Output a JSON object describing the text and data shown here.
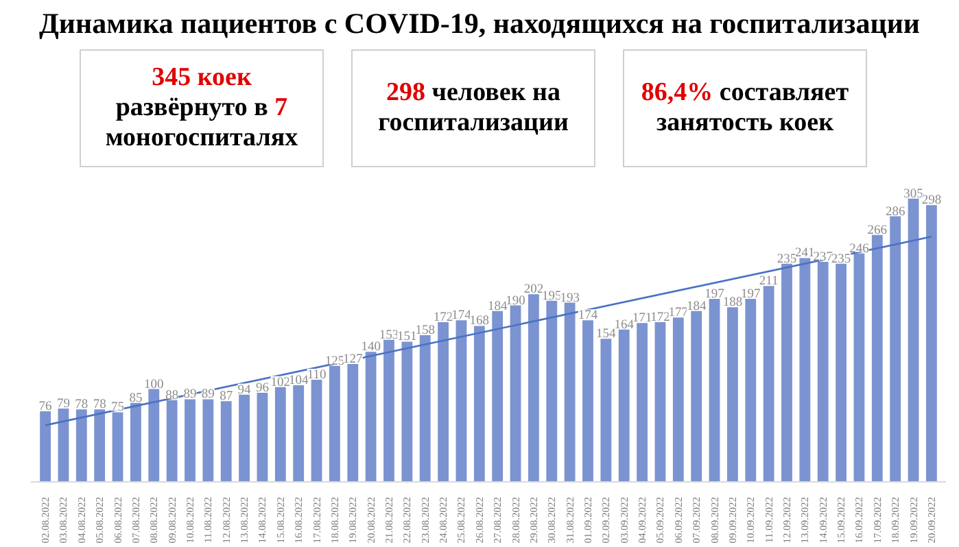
{
  "chart_data": [
    {
      "type": "bar",
      "title": "Динамика пациентов с COVID-19, находящихся на госпитализации",
      "categories": [
        "02.08.2022",
        "03.08.2022",
        "04.08.2022",
        "05.08.2022",
        "06.08.2022",
        "07.08.2022",
        "08.08.2022",
        "09.08.2022",
        "10.08.2022",
        "11.08.2022",
        "12.08.2022",
        "13.08.2022",
        "14.08.2022",
        "15.08.2022",
        "16.08.2022",
        "17.08.2022",
        "18.08.2022",
        "19.08.2022",
        "20.08.2022",
        "21.08.2022",
        "22.08.2022",
        "23.08.2022",
        "24.08.2022",
        "25.08.2022",
        "26.08.2022",
        "27.08.2022",
        "28.08.2022",
        "29.08.2022",
        "30.08.2022",
        "31.08.2022",
        "01.09.2022",
        "02.09.2022",
        "03.09.2022",
        "04.09.2022",
        "05.09.2022",
        "06.09.2022",
        "07.09.2022",
        "08.09.2022",
        "09.09.2022",
        "10.09.2022",
        "11.09.2022",
        "12.09.2022",
        "13.09.2022",
        "14.09.2022",
        "15.09.2022",
        "16.09.2022",
        "17.09.2022",
        "18.09.2022",
        "19.09.2022",
        "20.09.2022"
      ],
      "series": [
        {
          "type": "bar",
          "color": "#7b93d0",
          "values": [
            76,
            79,
            78,
            78,
            75,
            85,
            100,
            88,
            89,
            89,
            87,
            94,
            96,
            102,
            104,
            110,
            125,
            127,
            140,
            153,
            151,
            158,
            172,
            174,
            168,
            184,
            190,
            202,
            195,
            193,
            174,
            154,
            164,
            171,
            172,
            177,
            184,
            197,
            188,
            197,
            211,
            235,
            241,
            237,
            235,
            246,
            266,
            286,
            305,
            298
          ]
        },
        {
          "type": "line",
          "color": "#4a72c4",
          "x": [
            "02.08.2022",
            "20.09.2022"
          ],
          "values": [
            61,
            264
          ],
          "value_labels": [
            null,
            null
          ]
        }
      ],
      "data_labels": true,
      "grid": false
    },
    {
      "type": "other",
      "annotations": [
        "345 коек",
        " развёрнуто в ",
        "7",
        " моногоспиталях"
      ],
      "colors": [
        "#e00000",
        "#000000",
        "#e00000",
        "#000000"
      ]
    },
    {
      "type": "other",
      "annotations": [
        "298",
        " человек на госпитализации"
      ],
      "colors": [
        "#e00000",
        "#000000"
      ]
    },
    {
      "type": "other",
      "annotations": [
        "86,4%",
        " составляет занятость коек"
      ],
      "colors": [
        "#e00000",
        "#000000"
      ]
    }
  ]
}
